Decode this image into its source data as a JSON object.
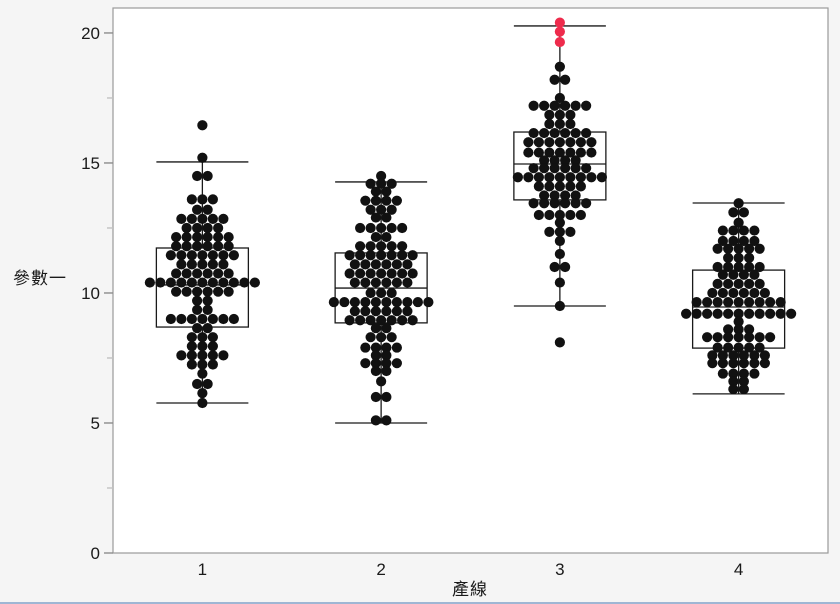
{
  "figure": {
    "background": "#f5f5f5",
    "plot_background": "#ffffff",
    "plot_border_color": "#9a9a9a",
    "bottom_edge_color": "#9fb6d4"
  },
  "y_axis": {
    "label": "參數一",
    "major_ticks": [
      0,
      5,
      10,
      15,
      20
    ],
    "minor_ticks": [
      2.5,
      7.5,
      12.5,
      17.5
    ],
    "tick_color": "#8c8c8c",
    "minor_tick_color": "#c2c2c2",
    "tick_label_color": "#1a1a1a"
  },
  "x_axis": {
    "label": "產線",
    "categories": [
      "1",
      "2",
      "3",
      "4"
    ],
    "tick_label_color": "#1a1a1a"
  },
  "chart_data": {
    "type": "box+dot",
    "title": "",
    "xlabel": "產線",
    "ylabel": "參數一",
    "ylim": [
      0,
      20.96
    ],
    "dot_color": "#111111",
    "highlight_color": "#ee2b4c",
    "box_stroke": "#1a1a1a",
    "groups": [
      {
        "category": "1",
        "box": {
          "q1": 8.69,
          "median": 10.31,
          "q3": 11.73,
          "whisker_low": 5.77,
          "whisker_high": 15.04
        },
        "dot_rows": [
          [
            16.45,
            1
          ],
          [
            15.2,
            1
          ],
          [
            14.5,
            2
          ],
          [
            13.6,
            3
          ],
          [
            13.2,
            2
          ],
          [
            12.85,
            5
          ],
          [
            12.5,
            4
          ],
          [
            12.15,
            6
          ],
          [
            11.8,
            6
          ],
          [
            11.45,
            7
          ],
          [
            11.1,
            5
          ],
          [
            10.75,
            6
          ],
          [
            10.4,
            11
          ],
          [
            10.05,
            6
          ],
          [
            9.7,
            2
          ],
          [
            9.35,
            2
          ],
          [
            9.0,
            7
          ],
          [
            8.65,
            2
          ],
          [
            8.3,
            3
          ],
          [
            7.95,
            3
          ],
          [
            7.6,
            5
          ],
          [
            7.25,
            3
          ],
          [
            6.9,
            1
          ],
          [
            6.5,
            2
          ],
          [
            6.15,
            1
          ],
          [
            5.77,
            1
          ]
        ],
        "highlight_rows": []
      },
      {
        "category": "2",
        "box": {
          "q1": 8.85,
          "median": 10.19,
          "q3": 11.54,
          "whisker_low": 5.0,
          "whisker_high": 14.27
        },
        "dot_rows": [
          [
            14.5,
            1
          ],
          [
            14.2,
            3
          ],
          [
            13.9,
            2
          ],
          [
            13.55,
            4
          ],
          [
            13.2,
            3
          ],
          [
            12.9,
            2
          ],
          [
            12.5,
            5
          ],
          [
            12.15,
            2
          ],
          [
            11.8,
            5
          ],
          [
            11.45,
            7
          ],
          [
            11.1,
            6
          ],
          [
            10.75,
            7
          ],
          [
            10.4,
            6
          ],
          [
            10.0,
            3
          ],
          [
            9.65,
            10
          ],
          [
            9.3,
            6
          ],
          [
            8.95,
            7
          ],
          [
            8.65,
            2
          ],
          [
            8.3,
            3
          ],
          [
            7.9,
            4
          ],
          [
            7.6,
            2
          ],
          [
            7.3,
            4
          ],
          [
            7.0,
            2
          ],
          [
            6.6,
            1
          ],
          [
            6.0,
            2
          ],
          [
            5.1,
            2
          ]
        ],
        "highlight_rows": []
      },
      {
        "category": "3",
        "box": {
          "q1": 13.58,
          "median": 14.96,
          "q3": 16.19,
          "whisker_low": 9.5,
          "whisker_high": 20.27
        },
        "dot_rows": [
          [
            18.7,
            1
          ],
          [
            18.2,
            2
          ],
          [
            17.5,
            1
          ],
          [
            17.2,
            6
          ],
          [
            16.85,
            3
          ],
          [
            16.5,
            3
          ],
          [
            16.15,
            6
          ],
          [
            15.8,
            7
          ],
          [
            15.4,
            7
          ],
          [
            15.1,
            4
          ],
          [
            14.8,
            6
          ],
          [
            14.45,
            9
          ],
          [
            14.1,
            5
          ],
          [
            13.75,
            4
          ],
          [
            13.45,
            6
          ],
          [
            13.0,
            5
          ],
          [
            12.7,
            1
          ],
          [
            12.35,
            3
          ],
          [
            12.0,
            1
          ],
          [
            11.5,
            1
          ],
          [
            11.0,
            2
          ],
          [
            10.4,
            1
          ],
          [
            9.5,
            1
          ],
          [
            8.1,
            1
          ]
        ],
        "highlight_rows": [
          [
            20.4,
            1
          ],
          [
            20.05,
            1
          ],
          [
            19.65,
            1
          ]
        ]
      },
      {
        "category": "4",
        "box": {
          "q1": 7.88,
          "median": 9.46,
          "q3": 10.88,
          "whisker_low": 6.12,
          "whisker_high": 13.46
        },
        "dot_rows": [
          [
            13.45,
            1
          ],
          [
            13.1,
            2
          ],
          [
            12.7,
            1
          ],
          [
            12.4,
            4
          ],
          [
            12.0,
            4
          ],
          [
            11.7,
            5
          ],
          [
            11.35,
            3
          ],
          [
            11.0,
            5
          ],
          [
            10.7,
            4
          ],
          [
            10.35,
            5
          ],
          [
            10.0,
            6
          ],
          [
            9.65,
            9
          ],
          [
            9.2,
            11
          ],
          [
            8.9,
            1
          ],
          [
            8.6,
            3
          ],
          [
            8.3,
            7
          ],
          [
            7.9,
            5
          ],
          [
            7.6,
            6
          ],
          [
            7.3,
            6
          ],
          [
            6.9,
            4
          ],
          [
            6.6,
            2
          ],
          [
            6.3,
            2
          ]
        ],
        "highlight_rows": []
      }
    ]
  }
}
